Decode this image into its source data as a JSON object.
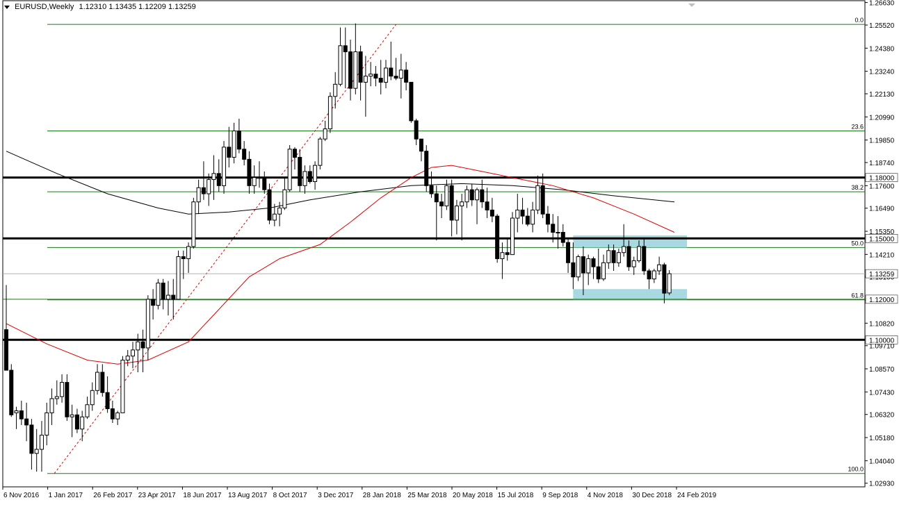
{
  "header": {
    "symbol": "EURUSD,Weekly",
    "ohlc": "1.12310 1.13435 1.12209 1.13259"
  },
  "chart_data": {
    "type": "candlestick",
    "symbol": "EURUSD",
    "timeframe": "Weekly",
    "y_ticks": [
      "1.26630",
      "1.25520",
      "1.24380",
      "1.23240",
      "1.22130",
      "1.20990",
      "1.19850",
      "1.18740",
      "1.17600",
      "1.16490",
      "1.15350",
      "1.14210",
      "1.13100",
      "1.11960",
      "1.10820",
      "1.09710",
      "1.08570",
      "1.07430",
      "1.06320",
      "1.05180",
      "1.04040",
      "1.02930"
    ],
    "x_ticks": [
      "6 Nov 2016",
      "1 Jan 2017",
      "26 Feb 2017",
      "23 Apr 2017",
      "18 Jun 2017",
      "13 Aug 2017",
      "8 Oct 2017",
      "3 Dec 2017",
      "28 Jan 2018",
      "25 Mar 2018",
      "20 May 2018",
      "15 Jul 2018",
      "9 Sep 2018",
      "4 Nov 2018",
      "30 Dec 2018",
      "24 Feb 2019"
    ],
    "ylim": [
      1.0275,
      1.2672
    ],
    "horizontal_levels": [
      {
        "value": 1.18,
        "label": "1.18000"
      },
      {
        "value": 1.15,
        "label": "1.15000"
      },
      {
        "value": 1.1,
        "label": "1.10000"
      },
      {
        "value": 1.12,
        "label": "1.12000"
      }
    ],
    "current_price": {
      "value": 1.13259,
      "label": "1.13259"
    },
    "fibonacci": {
      "high": 1.2555,
      "low": 1.0341,
      "levels": [
        {
          "label": "0.0",
          "value": 1.2555
        },
        {
          "label": "23.6",
          "value": 1.203
        },
        {
          "label": "38.2",
          "value": 1.173
        },
        {
          "label": "50.0",
          "value": 1.1455
        },
        {
          "label": "61.8",
          "value": 1.1197
        },
        {
          "label": "100.0",
          "value": 1.0341
        }
      ]
    },
    "support_zone_upper": [
      1.1455,
      1.1515
    ],
    "support_zone_lower": [
      1.1197,
      1.125
    ],
    "candles": [
      {
        "o": 1.105,
        "h": 1.127,
        "l": 1.087,
        "c": 1.085
      },
      {
        "o": 1.085,
        "h": 1.088,
        "l": 1.062,
        "c": 1.063
      },
      {
        "o": 1.064,
        "h": 1.067,
        "l": 1.056,
        "c": 1.065
      },
      {
        "o": 1.065,
        "h": 1.07,
        "l": 1.058,
        "c": 1.061
      },
      {
        "o": 1.061,
        "h": 1.069,
        "l": 1.05,
        "c": 1.058
      },
      {
        "o": 1.058,
        "h": 1.061,
        "l": 1.036,
        "c": 1.044
      },
      {
        "o": 1.044,
        "h": 1.056,
        "l": 1.035,
        "c": 1.046
      },
      {
        "o": 1.046,
        "h": 1.06,
        "l": 1.035,
        "c": 1.053
      },
      {
        "o": 1.053,
        "h": 1.069,
        "l": 1.048,
        "c": 1.064
      },
      {
        "o": 1.064,
        "h": 1.076,
        "l": 1.058,
        "c": 1.071
      },
      {
        "o": 1.071,
        "h": 1.08,
        "l": 1.068,
        "c": 1.072
      },
      {
        "o": 1.072,
        "h": 1.083,
        "l": 1.069,
        "c": 1.079
      },
      {
        "o": 1.079,
        "h": 1.083,
        "l": 1.06,
        "c": 1.062
      },
      {
        "o": 1.062,
        "h": 1.068,
        "l": 1.052,
        "c": 1.063
      },
      {
        "o": 1.063,
        "h": 1.066,
        "l": 1.054,
        "c": 1.056
      },
      {
        "o": 1.056,
        "h": 1.065,
        "l": 1.05,
        "c": 1.062
      },
      {
        "o": 1.062,
        "h": 1.072,
        "l": 1.061,
        "c": 1.068
      },
      {
        "o": 1.068,
        "h": 1.079,
        "l": 1.065,
        "c": 1.075
      },
      {
        "o": 1.075,
        "h": 1.088,
        "l": 1.073,
        "c": 1.084
      },
      {
        "o": 1.084,
        "h": 1.088,
        "l": 1.072,
        "c": 1.074
      },
      {
        "o": 1.074,
        "h": 1.082,
        "l": 1.064,
        "c": 1.066
      },
      {
        "o": 1.066,
        "h": 1.07,
        "l": 1.059,
        "c": 1.061
      },
      {
        "o": 1.061,
        "h": 1.065,
        "l": 1.058,
        "c": 1.064
      },
      {
        "o": 1.064,
        "h": 1.092,
        "l": 1.064,
        "c": 1.09
      },
      {
        "o": 1.09,
        "h": 1.095,
        "l": 1.087,
        "c": 1.092
      },
      {
        "o": 1.092,
        "h": 1.099,
        "l": 1.086,
        "c": 1.095
      },
      {
        "o": 1.095,
        "h": 1.103,
        "l": 1.084,
        "c": 1.099
      },
      {
        "o": 1.099,
        "h": 1.105,
        "l": 1.084,
        "c": 1.096
      },
      {
        "o": 1.096,
        "h": 1.122,
        "l": 1.09,
        "c": 1.12
      },
      {
        "o": 1.12,
        "h": 1.125,
        "l": 1.11,
        "c": 1.117
      },
      {
        "o": 1.117,
        "h": 1.13,
        "l": 1.115,
        "c": 1.128
      },
      {
        "o": 1.128,
        "h": 1.13,
        "l": 1.115,
        "c": 1.12
      },
      {
        "o": 1.12,
        "h": 1.129,
        "l": 1.112,
        "c": 1.122
      },
      {
        "o": 1.122,
        "h": 1.13,
        "l": 1.11,
        "c": 1.12
      },
      {
        "o": 1.12,
        "h": 1.144,
        "l": 1.12,
        "c": 1.141
      },
      {
        "o": 1.141,
        "h": 1.144,
        "l": 1.13,
        "c": 1.14
      },
      {
        "o": 1.14,
        "h": 1.148,
        "l": 1.133,
        "c": 1.146
      },
      {
        "o": 1.146,
        "h": 1.17,
        "l": 1.145,
        "c": 1.168
      },
      {
        "o": 1.168,
        "h": 1.179,
        "l": 1.162,
        "c": 1.175
      },
      {
        "o": 1.175,
        "h": 1.188,
        "l": 1.169,
        "c": 1.172
      },
      {
        "o": 1.172,
        "h": 1.182,
        "l": 1.166,
        "c": 1.179
      },
      {
        "o": 1.179,
        "h": 1.191,
        "l": 1.169,
        "c": 1.182
      },
      {
        "o": 1.182,
        "h": 1.189,
        "l": 1.173,
        "c": 1.176
      },
      {
        "o": 1.176,
        "h": 1.198,
        "l": 1.172,
        "c": 1.195
      },
      {
        "o": 1.195,
        "h": 1.205,
        "l": 1.185,
        "c": 1.19
      },
      {
        "o": 1.19,
        "h": 1.207,
        "l": 1.187,
        "c": 1.203
      },
      {
        "o": 1.203,
        "h": 1.209,
        "l": 1.192,
        "c": 1.194
      },
      {
        "o": 1.194,
        "h": 1.198,
        "l": 1.186,
        "c": 1.189
      },
      {
        "o": 1.189,
        "h": 1.193,
        "l": 1.172,
        "c": 1.176
      },
      {
        "o": 1.176,
        "h": 1.186,
        "l": 1.172,
        "c": 1.18
      },
      {
        "o": 1.18,
        "h": 1.188,
        "l": 1.175,
        "c": 1.18
      },
      {
        "o": 1.18,
        "h": 1.183,
        "l": 1.172,
        "c": 1.174
      },
      {
        "o": 1.174,
        "h": 1.177,
        "l": 1.157,
        "c": 1.159
      },
      {
        "o": 1.159,
        "h": 1.167,
        "l": 1.156,
        "c": 1.162
      },
      {
        "o": 1.162,
        "h": 1.168,
        "l": 1.156,
        "c": 1.165
      },
      {
        "o": 1.165,
        "h": 1.18,
        "l": 1.164,
        "c": 1.174
      },
      {
        "o": 1.174,
        "h": 1.196,
        "l": 1.173,
        "c": 1.194
      },
      {
        "o": 1.194,
        "h": 1.195,
        "l": 1.184,
        "c": 1.19
      },
      {
        "o": 1.19,
        "h": 1.194,
        "l": 1.173,
        "c": 1.176
      },
      {
        "o": 1.176,
        "h": 1.186,
        "l": 1.172,
        "c": 1.183
      },
      {
        "o": 1.183,
        "h": 1.186,
        "l": 1.177,
        "c": 1.178
      },
      {
        "o": 1.178,
        "h": 1.188,
        "l": 1.174,
        "c": 1.186
      },
      {
        "o": 1.186,
        "h": 1.2,
        "l": 1.184,
        "c": 1.199
      },
      {
        "o": 1.199,
        "h": 1.208,
        "l": 1.198,
        "c": 1.204
      },
      {
        "o": 1.204,
        "h": 1.222,
        "l": 1.202,
        "c": 1.22
      },
      {
        "o": 1.22,
        "h": 1.232,
        "l": 1.214,
        "c": 1.226
      },
      {
        "o": 1.226,
        "h": 1.254,
        "l": 1.225,
        "c": 1.245
      },
      {
        "o": 1.245,
        "h": 1.254,
        "l": 1.224,
        "c": 1.242
      },
      {
        "o": 1.242,
        "h": 1.248,
        "l": 1.218,
        "c": 1.224
      },
      {
        "o": 1.224,
        "h": 1.256,
        "l": 1.221,
        "c": 1.242
      },
      {
        "o": 1.242,
        "h": 1.245,
        "l": 1.218,
        "c": 1.227
      },
      {
        "o": 1.227,
        "h": 1.24,
        "l": 1.21,
        "c": 1.23
      },
      {
        "o": 1.23,
        "h": 1.237,
        "l": 1.225,
        "c": 1.231
      },
      {
        "o": 1.231,
        "h": 1.235,
        "l": 1.225,
        "c": 1.229
      },
      {
        "o": 1.229,
        "h": 1.238,
        "l": 1.221,
        "c": 1.227
      },
      {
        "o": 1.227,
        "h": 1.238,
        "l": 1.224,
        "c": 1.234
      },
      {
        "o": 1.234,
        "h": 1.247,
        "l": 1.228,
        "c": 1.23
      },
      {
        "o": 1.23,
        "h": 1.239,
        "l": 1.228,
        "c": 1.229
      },
      {
        "o": 1.229,
        "h": 1.241,
        "l": 1.219,
        "c": 1.233
      },
      {
        "o": 1.233,
        "h": 1.237,
        "l": 1.223,
        "c": 1.227
      },
      {
        "o": 1.227,
        "h": 1.227,
        "l": 1.207,
        "c": 1.208
      },
      {
        "o": 1.208,
        "h": 1.209,
        "l": 1.196,
        "c": 1.199
      },
      {
        "o": 1.199,
        "h": 1.199,
        "l": 1.188,
        "c": 1.193
      },
      {
        "o": 1.193,
        "h": 1.196,
        "l": 1.173,
        "c": 1.176
      },
      {
        "o": 1.176,
        "h": 1.183,
        "l": 1.17,
        "c": 1.172
      },
      {
        "o": 1.172,
        "h": 1.176,
        "l": 1.149,
        "c": 1.168
      },
      {
        "o": 1.168,
        "h": 1.172,
        "l": 1.16,
        "c": 1.166
      },
      {
        "o": 1.166,
        "h": 1.179,
        "l": 1.164,
        "c": 1.176
      },
      {
        "o": 1.176,
        "h": 1.179,
        "l": 1.151,
        "c": 1.159
      },
      {
        "o": 1.159,
        "h": 1.169,
        "l": 1.152,
        "c": 1.166
      },
      {
        "o": 1.166,
        "h": 1.172,
        "l": 1.149,
        "c": 1.168
      },
      {
        "o": 1.168,
        "h": 1.176,
        "l": 1.165,
        "c": 1.174
      },
      {
        "o": 1.174,
        "h": 1.177,
        "l": 1.166,
        "c": 1.169
      },
      {
        "o": 1.169,
        "h": 1.175,
        "l": 1.157,
        "c": 1.174
      },
      {
        "o": 1.174,
        "h": 1.179,
        "l": 1.165,
        "c": 1.168
      },
      {
        "o": 1.168,
        "h": 1.175,
        "l": 1.16,
        "c": 1.164
      },
      {
        "o": 1.164,
        "h": 1.17,
        "l": 1.158,
        "c": 1.161
      },
      {
        "o": 1.161,
        "h": 1.162,
        "l": 1.138,
        "c": 1.14
      },
      {
        "o": 1.14,
        "h": 1.148,
        "l": 1.13,
        "c": 1.143
      },
      {
        "o": 1.143,
        "h": 1.15,
        "l": 1.139,
        "c": 1.142
      },
      {
        "o": 1.142,
        "h": 1.163,
        "l": 1.142,
        "c": 1.16
      },
      {
        "o": 1.16,
        "h": 1.172,
        "l": 1.153,
        "c": 1.164
      },
      {
        "o": 1.164,
        "h": 1.17,
        "l": 1.157,
        "c": 1.161
      },
      {
        "o": 1.161,
        "h": 1.165,
        "l": 1.156,
        "c": 1.157
      },
      {
        "o": 1.157,
        "h": 1.168,
        "l": 1.153,
        "c": 1.164
      },
      {
        "o": 1.164,
        "h": 1.181,
        "l": 1.162,
        "c": 1.176
      },
      {
        "o": 1.176,
        "h": 1.182,
        "l": 1.16,
        "c": 1.162
      },
      {
        "o": 1.162,
        "h": 1.166,
        "l": 1.153,
        "c": 1.157
      },
      {
        "o": 1.157,
        "h": 1.162,
        "l": 1.148,
        "c": 1.153
      },
      {
        "o": 1.153,
        "h": 1.161,
        "l": 1.145,
        "c": 1.153
      },
      {
        "o": 1.153,
        "h": 1.157,
        "l": 1.146,
        "c": 1.148
      },
      {
        "o": 1.148,
        "h": 1.15,
        "l": 1.133,
        "c": 1.138
      },
      {
        "o": 1.138,
        "h": 1.148,
        "l": 1.125,
        "c": 1.131
      },
      {
        "o": 1.131,
        "h": 1.142,
        "l": 1.129,
        "c": 1.141
      },
      {
        "o": 1.141,
        "h": 1.146,
        "l": 1.122,
        "c": 1.133
      },
      {
        "o": 1.133,
        "h": 1.142,
        "l": 1.127,
        "c": 1.14
      },
      {
        "o": 1.14,
        "h": 1.141,
        "l": 1.13,
        "c": 1.136
      },
      {
        "o": 1.136,
        "h": 1.145,
        "l": 1.128,
        "c": 1.13
      },
      {
        "o": 1.13,
        "h": 1.142,
        "l": 1.129,
        "c": 1.138
      },
      {
        "o": 1.138,
        "h": 1.147,
        "l": 1.135,
        "c": 1.144
      },
      {
        "o": 1.144,
        "h": 1.147,
        "l": 1.134,
        "c": 1.138
      },
      {
        "o": 1.138,
        "h": 1.145,
        "l": 1.136,
        "c": 1.143
      },
      {
        "o": 1.143,
        "h": 1.157,
        "l": 1.141,
        "c": 1.146
      },
      {
        "o": 1.146,
        "h": 1.149,
        "l": 1.134,
        "c": 1.136
      },
      {
        "o": 1.136,
        "h": 1.141,
        "l": 1.132,
        "c": 1.139
      },
      {
        "o": 1.139,
        "h": 1.149,
        "l": 1.138,
        "c": 1.146
      },
      {
        "o": 1.146,
        "h": 1.15,
        "l": 1.132,
        "c": 1.134
      },
      {
        "o": 1.134,
        "h": 1.135,
        "l": 1.125,
        "c": 1.13
      },
      {
        "o": 1.13,
        "h": 1.135,
        "l": 1.128,
        "c": 1.134
      },
      {
        "o": 1.134,
        "h": 1.141,
        "l": 1.132,
        "c": 1.137
      },
      {
        "o": 1.137,
        "h": 1.138,
        "l": 1.118,
        "c": 1.123
      },
      {
        "o": 1.1231,
        "h": 1.13435,
        "l": 1.12209,
        "c": 1.13259
      }
    ],
    "ma_black": [
      {
        "i": 0,
        "v": 1.193
      },
      {
        "i": 10,
        "v": 1.182
      },
      {
        "i": 20,
        "v": 1.172
      },
      {
        "i": 30,
        "v": 1.165
      },
      {
        "i": 36,
        "v": 1.162
      },
      {
        "i": 44,
        "v": 1.163
      },
      {
        "i": 52,
        "v": 1.165
      },
      {
        "i": 60,
        "v": 1.169
      },
      {
        "i": 70,
        "v": 1.173
      },
      {
        "i": 80,
        "v": 1.176
      },
      {
        "i": 90,
        "v": 1.177
      },
      {
        "i": 100,
        "v": 1.176
      },
      {
        "i": 110,
        "v": 1.174
      },
      {
        "i": 120,
        "v": 1.171
      },
      {
        "i": 132,
        "v": 1.168
      }
    ],
    "ma_red": [
      {
        "i": 0,
        "v": 1.108
      },
      {
        "i": 8,
        "v": 1.098
      },
      {
        "i": 16,
        "v": 1.09
      },
      {
        "i": 22,
        "v": 1.088
      },
      {
        "i": 28,
        "v": 1.09
      },
      {
        "i": 36,
        "v": 1.099
      },
      {
        "i": 42,
        "v": 1.115
      },
      {
        "i": 48,
        "v": 1.131
      },
      {
        "i": 54,
        "v": 1.14
      },
      {
        "i": 62,
        "v": 1.147
      },
      {
        "i": 68,
        "v": 1.158
      },
      {
        "i": 74,
        "v": 1.17
      },
      {
        "i": 80,
        "v": 1.18
      },
      {
        "i": 84,
        "v": 1.185
      },
      {
        "i": 88,
        "v": 1.186
      },
      {
        "i": 94,
        "v": 1.183
      },
      {
        "i": 100,
        "v": 1.18
      },
      {
        "i": 108,
        "v": 1.176
      },
      {
        "i": 116,
        "v": 1.17
      },
      {
        "i": 124,
        "v": 1.162
      },
      {
        "i": 132,
        "v": 1.153
      }
    ],
    "trend_line": {
      "i0": 9.5,
      "v0": 1.0341,
      "i1": 77,
      "v1": 1.2555
    }
  }
}
